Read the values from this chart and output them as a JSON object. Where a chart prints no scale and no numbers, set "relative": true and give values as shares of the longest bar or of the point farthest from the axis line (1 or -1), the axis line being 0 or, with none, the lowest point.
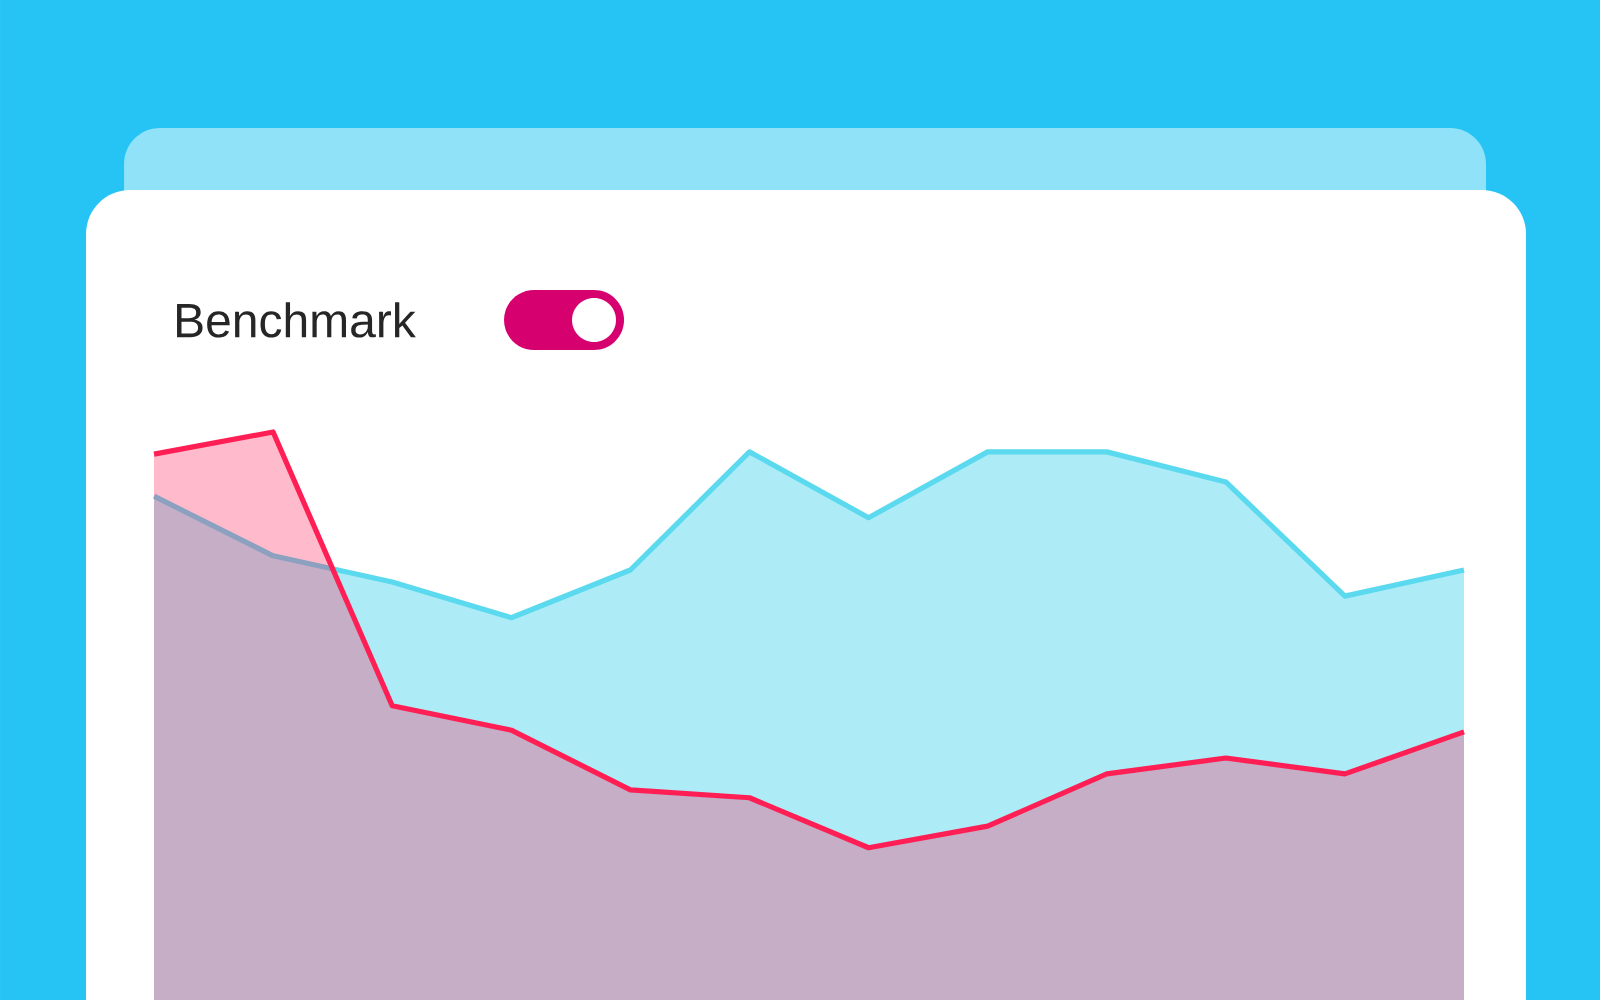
{
  "chart_data": {
    "type": "area",
    "title": "Benchmark",
    "relative": true,
    "categories": [
      null,
      null,
      null,
      null,
      null,
      null,
      null,
      null,
      null,
      null,
      null,
      null
    ],
    "series": [
      {
        "color": "#5bd9ee",
        "values": [
          0.887,
          0.782,
          0.736,
          0.673,
          0.757,
          0.965,
          0.849,
          0.965,
          0.965,
          0.912,
          0.711,
          0.757
        ]
      },
      {
        "color": "#ff1f55",
        "values": [
          0.961,
          1,
          0.518,
          0.475,
          0.37,
          0.356,
          0.268,
          0.306,
          0.398,
          0.426,
          0.398,
          0.472
        ]
      }
    ]
  }
}
